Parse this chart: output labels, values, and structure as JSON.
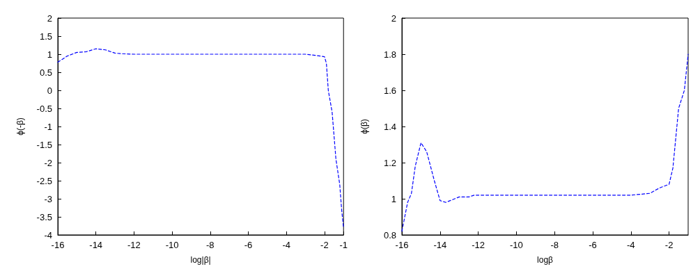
{
  "chart_data": [
    {
      "type": "line",
      "xlabel": "log|β|",
      "ylabel": "ϕ(-β)",
      "xlim": [
        -16,
        -1
      ],
      "xticks": [
        -16,
        -14,
        -12,
        -10,
        -8,
        -6,
        -4,
        -2,
        -1
      ],
      "ylim": [
        -4,
        2
      ],
      "yticks": [
        -4,
        -3.5,
        -3,
        -2.5,
        -2,
        -1.5,
        -1,
        -0.5,
        0,
        0.5,
        1,
        1.5,
        2
      ],
      "grid": false,
      "marker": "none",
      "line_style": "dashed",
      "series": [
        {
          "color": "#0000ff",
          "x": [
            -16,
            -15.5,
            -15,
            -14.5,
            -14,
            -13.5,
            -13,
            -12.5,
            -12,
            -10,
            -8,
            -6,
            -4,
            -3,
            -2.5,
            -2,
            -1.9,
            -1.8,
            -1.6,
            -1.4,
            -1.2,
            -1.1,
            -1
          ],
          "values": [
            0.78,
            0.95,
            1.05,
            1.07,
            1.15,
            1.12,
            1.03,
            1.01,
            1,
            1,
            1,
            1,
            1,
            1,
            0.97,
            0.93,
            0.75,
            0,
            -0.6,
            -1.9,
            -2.6,
            -3.3,
            -3.8
          ]
        }
      ]
    },
    {
      "type": "line",
      "xlabel": "logβ",
      "ylabel": "ϕ(β)",
      "xlim": [
        -16,
        -1
      ],
      "xticks": [
        -16,
        -14,
        -12,
        -10,
        -8,
        -6,
        -4,
        -2
      ],
      "ylim": [
        0.8,
        2
      ],
      "yticks": [
        0.8,
        1,
        1.2,
        1.4,
        1.6,
        1.8,
        2
      ],
      "grid": false,
      "marker": "none",
      "line_style": "dashed",
      "series": [
        {
          "color": "#0000ff",
          "x": [
            -16,
            -15.7,
            -15.5,
            -15.3,
            -15,
            -14.7,
            -14.3,
            -14,
            -13.7,
            -13,
            -12.5,
            -12.2,
            -8,
            -4,
            -3,
            -2.5,
            -2,
            -1.8,
            -1.5,
            -1.2,
            -1
          ],
          "values": [
            0.82,
            0.98,
            1.03,
            1.18,
            1.31,
            1.26,
            1.1,
            0.99,
            0.98,
            1.01,
            1.01,
            1.02,
            1.02,
            1.02,
            1.03,
            1.06,
            1.08,
            1.17,
            1.5,
            1.6,
            1.8
          ]
        }
      ]
    }
  ]
}
